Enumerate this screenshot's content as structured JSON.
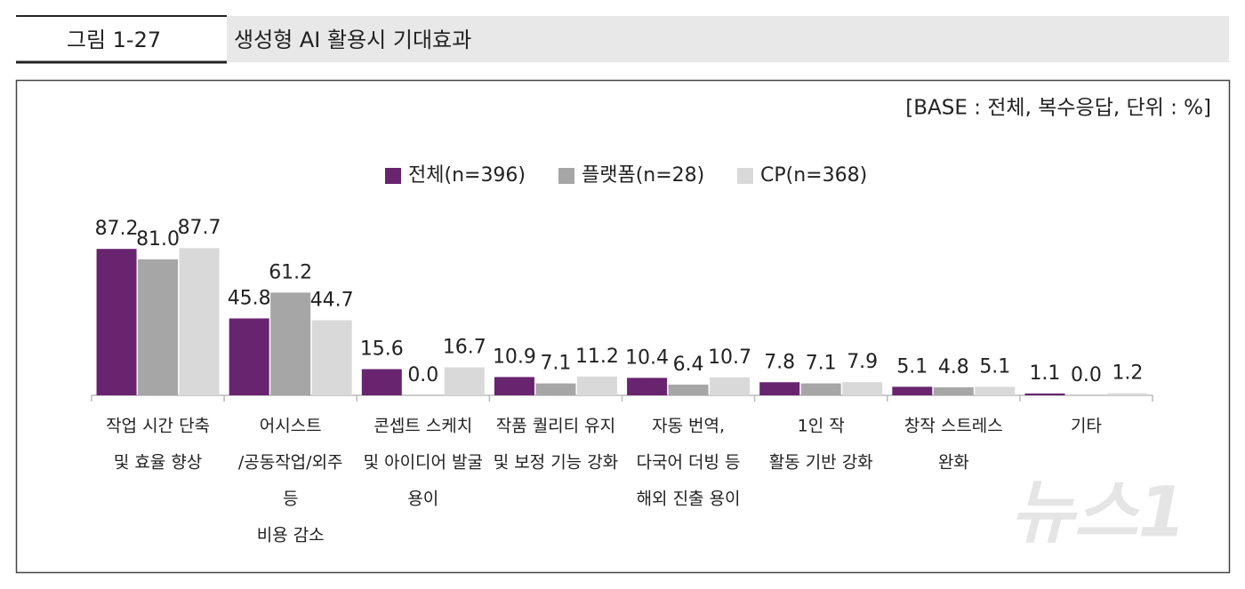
{
  "chart_data": {
    "type": "bar",
    "figure_label": "그림 1-27",
    "title": "생성형 AI 활용시 기대효과",
    "subtitle": "[BASE : 전체, 복수응답, 단위 : %]",
    "categories": [
      [
        "작업 시간 단축",
        "및 효율 향상"
      ],
      [
        "어시스트",
        "/공동작업/외주",
        "등",
        "비용 감소"
      ],
      [
        "콘셉트 스케치",
        "및 아이디어 발굴",
        "용이"
      ],
      [
        "작품 퀄리티 유지",
        "및 보정 기능 강화"
      ],
      [
        "자동 번역,",
        "다국어 더빙 등",
        "해외 진출 용이"
      ],
      [
        "1인 작",
        "활동 기반 강화"
      ],
      [
        "창작 스트레스",
        "완화"
      ],
      [
        "기타"
      ]
    ],
    "series": [
      {
        "name": "전체(n=396)",
        "color": "#68246f",
        "values": [
          87.2,
          45.8,
          15.6,
          10.9,
          10.4,
          7.8,
          5.1,
          1.1
        ],
        "value_labels": [
          "87.2",
          "45.8",
          "15.6",
          "10.9",
          "10.4",
          "7.8",
          "5.1",
          "1.1"
        ]
      },
      {
        "name": "플랫폼(n=28)",
        "color": "#a6a6a6",
        "values": [
          81.0,
          61.2,
          0.0,
          7.1,
          6.4,
          7.1,
          4.8,
          0.0
        ],
        "value_labels": [
          "81.0",
          "61.2",
          "0.0",
          "7.1",
          "6.4",
          "7.1",
          "4.8",
          "0.0"
        ]
      },
      {
        "name": "CP(n=368)",
        "color": "#d9d9d9",
        "values": [
          87.7,
          44.7,
          16.7,
          11.2,
          10.7,
          7.9,
          5.1,
          1.2
        ],
        "value_labels": [
          "87.7",
          "44.7",
          "16.7",
          "11.2",
          "10.7",
          "7.9",
          "5.1",
          "1.2"
        ]
      }
    ],
    "ylim": [
      0,
      100
    ],
    "grid": false
  },
  "watermark": "뉴스1"
}
